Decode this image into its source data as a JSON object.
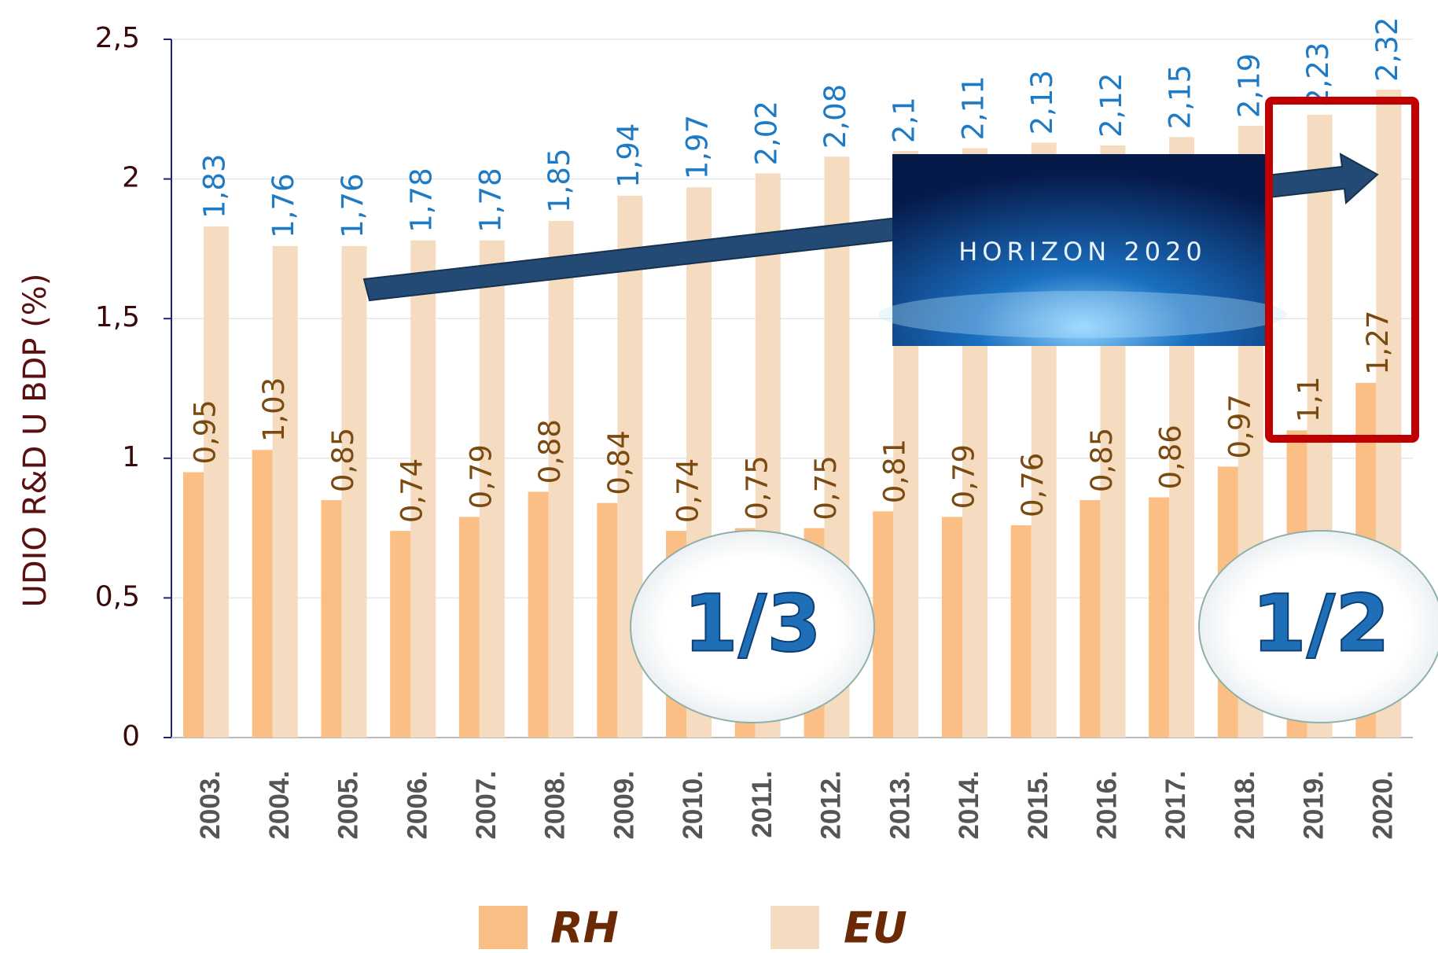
{
  "chart_data": {
    "type": "bar",
    "y_axis_label": "UDIO R&D U BDP (%)",
    "categories": [
      "2003.",
      "2004.",
      "2005.",
      "2006.",
      "2007.",
      "2008.",
      "2009.",
      "2010.",
      "2011.",
      "2012.",
      "2013.",
      "2014.",
      "2015.",
      "2016.",
      "2017.",
      "2018.",
      "2019.",
      "2020."
    ],
    "series": [
      {
        "name": "RH",
        "color": "#fbbf85",
        "values": [
          0.95,
          1.03,
          0.85,
          0.74,
          0.79,
          0.88,
          0.84,
          0.74,
          0.75,
          0.75,
          0.81,
          0.79,
          0.76,
          0.85,
          0.86,
          0.97,
          1.1,
          1.27
        ],
        "value_labels": [
          "0,95",
          "1,03",
          "0,85",
          "0,74",
          "0,79",
          "0,88",
          "0,84",
          "0,74",
          "0,75",
          "0,75",
          "0,81",
          "0,79",
          "0,76",
          "0,85",
          "0,86",
          "0,97",
          "1,1",
          "1,27"
        ],
        "label_color": "#7a4a10"
      },
      {
        "name": "EU",
        "color": "#f5dcc0",
        "values": [
          1.83,
          1.76,
          1.76,
          1.78,
          1.78,
          1.85,
          1.94,
          1.97,
          2.02,
          2.08,
          2.1,
          2.11,
          2.13,
          2.12,
          2.15,
          2.19,
          2.23,
          2.32
        ],
        "value_labels": [
          "1,83",
          "1,76",
          "1,76",
          "1,78",
          "1,78",
          "1,85",
          "1,94",
          "1,97",
          "2,02",
          "2,08",
          "2,1",
          "2,11",
          "2,13",
          "2,12",
          "2,15",
          "2,19",
          "2,23",
          "2,32"
        ],
        "label_color": "#1f7ac4"
      }
    ],
    "ylim": [
      0,
      2.5
    ],
    "yticks": [
      0,
      {
        "value": 0.5,
        "label": "0,5"
      },
      1,
      {
        "value": 1.5,
        "label": "1,5"
      },
      2,
      {
        "value": 2.5,
        "label": "2,5"
      }
    ],
    "grid": true,
    "annotations": [
      "HORIZON 2020",
      "1/3",
      "1/2"
    ]
  }
}
